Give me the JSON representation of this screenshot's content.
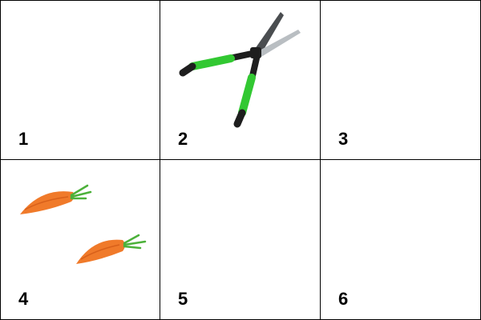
{
  "grid": {
    "cells": [
      {
        "label": "1",
        "content": "empty"
      },
      {
        "label": "2",
        "content": "hedge-shears-icon"
      },
      {
        "label": "3",
        "content": "empty"
      },
      {
        "label": "4",
        "content": "carrots-icon"
      },
      {
        "label": "5",
        "content": "empty"
      },
      {
        "label": "6",
        "content": "empty"
      }
    ]
  },
  "colors": {
    "border": "#000000",
    "handle_green": "#32c832",
    "handle_dark": "#1e1e1e",
    "blade": "#8a8f93",
    "carrot": "#f07a2a",
    "carrot_top": "#4cb13a"
  }
}
